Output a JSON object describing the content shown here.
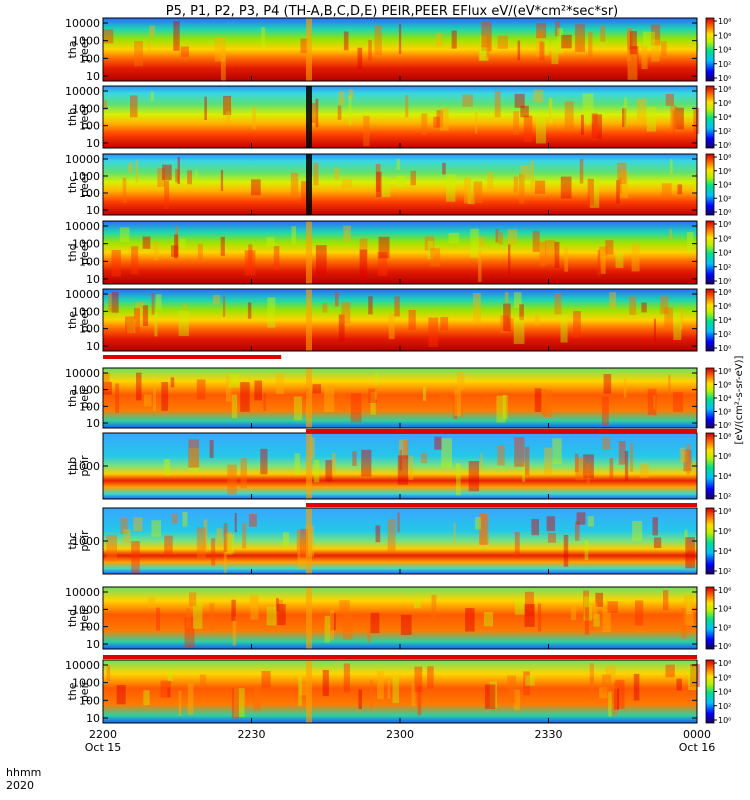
{
  "chart_data": {
    "type": "heatmap",
    "title": "P5, P1, P2, P3, P4 (TH-A,B,C,D,E) PEIR,PEER EFlux eV/(eV*cm²*sec*sr)",
    "x_axis": {
      "label_line1": "hhmm",
      "label_line2": "2020",
      "ticks": [
        {
          "value": 0,
          "time": "2200",
          "date": "Oct 15"
        },
        {
          "value": 30,
          "time": "2230",
          "date": ""
        },
        {
          "value": 60,
          "time": "2300",
          "date": ""
        },
        {
          "value": 90,
          "time": "2330",
          "date": ""
        },
        {
          "value": 120,
          "time": "0000",
          "date": "Oct 16"
        }
      ],
      "range_minutes": [
        0,
        120
      ]
    },
    "colorbar_label": "[eV/(cm²-s-sr-eV)]",
    "panels": [
      {
        "probe": "tha",
        "species": "peer",
        "yticks": [
          "10000",
          "1000",
          "100",
          "10"
        ],
        "cbar_ticks": [
          "10⁸",
          "10⁶",
          "10⁴",
          "10²",
          "10⁰"
        ]
      },
      {
        "probe": "thb",
        "species": "peer",
        "yticks": [
          "10000",
          "1000",
          "100",
          "10"
        ],
        "cbar_ticks": [
          "10⁸",
          "10⁶",
          "10⁴",
          "10²",
          "10⁰"
        ]
      },
      {
        "probe": "thc",
        "species": "peer",
        "yticks": [
          "10000",
          "1000",
          "100",
          "10"
        ],
        "cbar_ticks": [
          "10⁸",
          "10⁶",
          "10⁴",
          "10²",
          "10⁰"
        ]
      },
      {
        "probe": "thd",
        "species": "peer",
        "yticks": [
          "10000",
          "1000",
          "100",
          "10"
        ],
        "cbar_ticks": [
          "10⁸",
          "10⁶",
          "10⁴",
          "10²",
          "10⁰"
        ]
      },
      {
        "probe": "the",
        "species": "peer",
        "yticks": [
          "10000",
          "1000",
          "100",
          "10"
        ],
        "cbar_ticks": [
          "10⁸",
          "10⁶",
          "10⁴",
          "10²",
          "10⁰"
        ]
      },
      {
        "probe": "tha",
        "species": "peir",
        "yticks": [
          "10000",
          "1000",
          "100",
          "10"
        ],
        "cbar_ticks": [
          "10⁸",
          "10⁶",
          "10⁴",
          "10²",
          "10⁰"
        ]
      },
      {
        "probe": "thb",
        "species": "peir",
        "yticks": [
          "1000"
        ],
        "cbar_ticks": [
          "10⁸",
          "10⁶",
          "10⁴",
          "10²"
        ]
      },
      {
        "probe": "thc",
        "species": "peir",
        "yticks": [
          "1000"
        ],
        "cbar_ticks": [
          "10⁸",
          "10⁶",
          "10⁴",
          "10²"
        ]
      },
      {
        "probe": "thd",
        "species": "peir",
        "yticks": [
          "10000",
          "1000",
          "100",
          "10"
        ],
        "cbar_ticks": [
          "10⁶",
          "10⁴",
          "10²",
          "10⁰"
        ]
      },
      {
        "probe": "the",
        "species": "peir",
        "yticks": [
          "10000",
          "1000",
          "100",
          "10"
        ],
        "cbar_ticks": [
          "10⁸",
          "10⁶",
          "10⁴",
          "10²",
          "10⁰"
        ]
      }
    ]
  }
}
